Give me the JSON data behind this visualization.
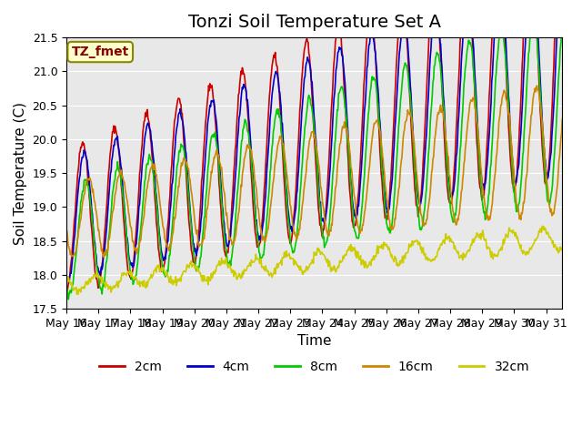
{
  "title": "Tonzi Soil Temperature Set A",
  "xlabel": "Time",
  "ylabel": "Soil Temperature (C)",
  "ylim": [
    17.5,
    21.5
  ],
  "xlim": [
    0,
    15.5
  ],
  "x_tick_labels": [
    "May 16",
    "May 17",
    "May 18",
    "May 19",
    "May 20",
    "May 21",
    "May 22",
    "May 23",
    "May 24",
    "May 25",
    "May 26",
    "May 27",
    "May 28",
    "May 29",
    "May 30",
    "May 31"
  ],
  "colors": {
    "2cm": "#cc0000",
    "4cm": "#0000cc",
    "8cm": "#00cc00",
    "16cm": "#cc8800",
    "32cm": "#cccc00"
  },
  "label_box": {
    "text": "TZ_fmet",
    "facecolor": "#ffffcc",
    "edgecolor": "#888800",
    "textcolor": "#880000"
  },
  "background_color": "#e8e8e8",
  "grid_color": "#ffffff",
  "title_fontsize": 14,
  "axis_fontsize": 11,
  "tick_fontsize": 9,
  "legend_fontsize": 10
}
